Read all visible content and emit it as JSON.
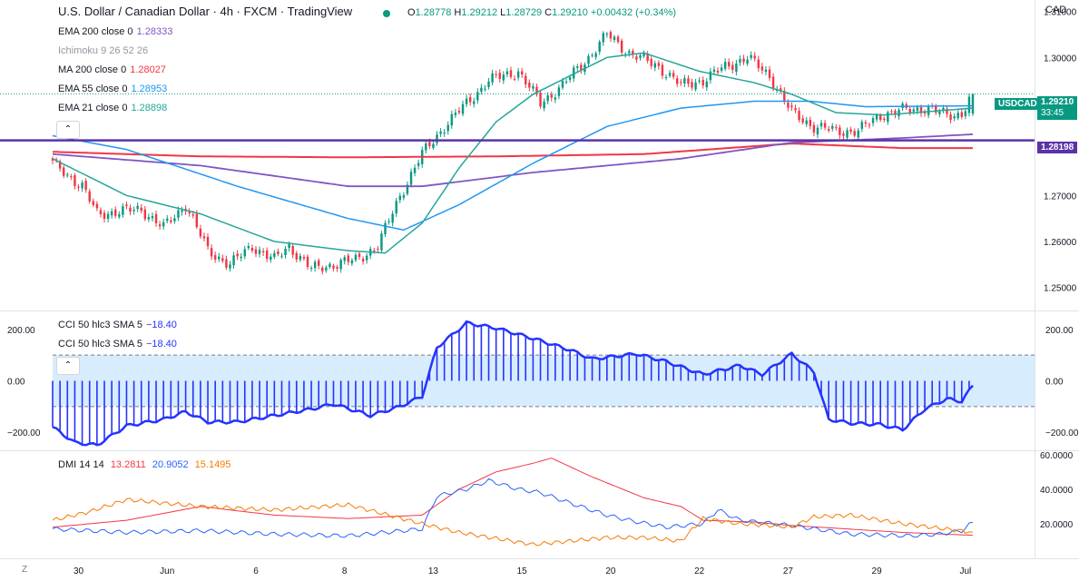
{
  "header": {
    "title": "U.S. Dollar / Canadian Dollar · 4h · FXCM · TradingView",
    "ohlc": {
      "o_label": "O",
      "o": "1.28778",
      "h_label": "H",
      "h": "1.29212",
      "l_label": "L",
      "l": "1.28729",
      "c_label": "C",
      "c": "1.29210",
      "change": "+0.00432 (+0.34%)"
    },
    "currency": "CAD"
  },
  "indicators": {
    "ema200": {
      "label": "EMA 200 close 0",
      "value": "1.28333",
      "color": "#7e57c2"
    },
    "ichimoku": {
      "label": "Ichimoku 9 26 52 26",
      "value": "",
      "color": "#b2b5be"
    },
    "ma200": {
      "label": "MA 200 close 0",
      "value": "1.28027",
      "color": "#f23645"
    },
    "ema55": {
      "label": "EMA 55 close 0",
      "value": "1.28953",
      "color": "#2196f3"
    },
    "ema21": {
      "label": "EMA 21 close 0",
      "value": "1.28898",
      "color": "#26a69a"
    }
  },
  "price_tags": {
    "symbol": "USDCAD",
    "last": "1.29210",
    "countdown": "33:45",
    "hline": "1.28198"
  },
  "colors": {
    "up": "#089981",
    "down": "#f23645",
    "hline": "#5b32a8",
    "cci": "#2433ff",
    "dmi_adx": "#f23645",
    "dmi_plus": "#2962ff",
    "dmi_minus": "#f57c00"
  },
  "cci_pane": {
    "labels": [
      "CCI 50 hlc3 SMA 5",
      "CCI 50 hlc3 SMA 5"
    ],
    "values": [
      "−18.40",
      "−18.40"
    ]
  },
  "dmi_pane": {
    "label": "DMI 14 14",
    "v1": "13.2811",
    "v2": "20.9052",
    "v3": "15.1495"
  },
  "chart_data": [
    {
      "type": "candlestick",
      "title": "U.S. Dollar / Canadian Dollar, 4h",
      "ylim": [
        1.245,
        1.3125
      ],
      "y_ticks": [
        "1.31000",
        "1.30000",
        "1.29000",
        "1.28000",
        "1.27000",
        "1.26000",
        "1.25000"
      ],
      "y_tick_values": [
        1.31,
        1.3,
        1.29,
        1.28,
        1.27,
        1.26,
        1.25
      ],
      "x_ticks": [
        "30",
        "Jun",
        "6",
        "8",
        "13",
        "15",
        "20",
        "22",
        "27",
        "29",
        "Jul"
      ],
      "x_tick_index": [
        7,
        31,
        55,
        79,
        103,
        127,
        151,
        175,
        199,
        223,
        247
      ],
      "n_bars": 250,
      "horizontal_line": 1.28198,
      "close_anchors": [
        [
          0,
          1.277
        ],
        [
          8,
          1.272
        ],
        [
          12,
          1.266
        ],
        [
          24,
          1.267
        ],
        [
          30,
          1.263
        ],
        [
          36,
          1.268
        ],
        [
          42,
          1.258
        ],
        [
          48,
          1.255
        ],
        [
          54,
          1.259
        ],
        [
          60,
          1.256
        ],
        [
          64,
          1.259
        ],
        [
          70,
          1.254
        ],
        [
          76,
          1.255
        ],
        [
          82,
          1.256
        ],
        [
          88,
          1.259
        ],
        [
          94,
          1.27
        ],
        [
          100,
          1.279
        ],
        [
          106,
          1.285
        ],
        [
          112,
          1.29
        ],
        [
          118,
          1.295
        ],
        [
          126,
          1.297
        ],
        [
          132,
          1.29
        ],
        [
          138,
          1.294
        ],
        [
          145,
          1.3
        ],
        [
          150,
          1.305
        ],
        [
          156,
          1.301
        ],
        [
          164,
          1.298
        ],
        [
          170,
          1.294
        ],
        [
          176,
          1.295
        ],
        [
          182,
          1.298
        ],
        [
          188,
          1.3
        ],
        [
          194,
          1.296
        ],
        [
          200,
          1.288
        ],
        [
          206,
          1.285
        ],
        [
          212,
          1.284
        ],
        [
          218,
          1.284
        ],
        [
          224,
          1.2875
        ],
        [
          230,
          1.2885
        ],
        [
          236,
          1.289
        ],
        [
          242,
          1.2875
        ],
        [
          246,
          1.2878
        ],
        [
          249,
          1.2921
        ]
      ],
      "ema200_anchors": [
        [
          0,
          1.279
        ],
        [
          40,
          1.2765
        ],
        [
          80,
          1.272
        ],
        [
          100,
          1.272
        ],
        [
          130,
          1.275
        ],
        [
          170,
          1.278
        ],
        [
          200,
          1.2815
        ],
        [
          230,
          1.2825
        ],
        [
          249,
          1.2833
        ]
      ],
      "ma200_anchors": [
        [
          0,
          1.2795
        ],
        [
          40,
          1.2785
        ],
        [
          80,
          1.2783
        ],
        [
          120,
          1.2785
        ],
        [
          160,
          1.279
        ],
        [
          200,
          1.2813
        ],
        [
          230,
          1.2803
        ],
        [
          249,
          1.2803
        ]
      ],
      "ema55_anchors": [
        [
          0,
          1.283
        ],
        [
          20,
          1.28
        ],
        [
          50,
          1.272
        ],
        [
          80,
          1.265
        ],
        [
          95,
          1.2625
        ],
        [
          110,
          1.268
        ],
        [
          130,
          1.277
        ],
        [
          150,
          1.285
        ],
        [
          170,
          1.289
        ],
        [
          190,
          1.2905
        ],
        [
          205,
          1.2905
        ],
        [
          220,
          1.2893
        ],
        [
          249,
          1.2895
        ]
      ],
      "ema21_anchors": [
        [
          0,
          1.278
        ],
        [
          20,
          1.27
        ],
        [
          40,
          1.266
        ],
        [
          60,
          1.26
        ],
        [
          80,
          1.258
        ],
        [
          90,
          1.2575
        ],
        [
          100,
          1.264
        ],
        [
          110,
          1.276
        ],
        [
          120,
          1.286
        ],
        [
          130,
          1.292
        ],
        [
          140,
          1.296
        ],
        [
          150,
          1.3
        ],
        [
          160,
          1.301
        ],
        [
          175,
          1.297
        ],
        [
          190,
          1.2945
        ],
        [
          200,
          1.292
        ],
        [
          212,
          1.288
        ],
        [
          225,
          1.2875
        ],
        [
          249,
          1.289
        ]
      ]
    },
    {
      "type": "area",
      "title": "CCI 50 hlc3 SMA 5",
      "ylim": [
        -270,
        270
      ],
      "y_ticks": [
        "200.00",
        "0.00",
        "−200.00"
      ],
      "y_tick_values": [
        200,
        0,
        -200
      ],
      "band": [
        -100,
        100
      ],
      "last": -18.4,
      "anchors": [
        [
          0,
          -180
        ],
        [
          6,
          -240
        ],
        [
          12,
          -250
        ],
        [
          20,
          -175
        ],
        [
          30,
          -150
        ],
        [
          36,
          -120
        ],
        [
          42,
          -160
        ],
        [
          50,
          -160
        ],
        [
          60,
          -135
        ],
        [
          70,
          -110
        ],
        [
          76,
          -90
        ],
        [
          86,
          -135
        ],
        [
          94,
          -100
        ],
        [
          100,
          -60
        ],
        [
          104,
          130
        ],
        [
          112,
          225
        ],
        [
          120,
          205
        ],
        [
          130,
          165
        ],
        [
          140,
          120
        ],
        [
          146,
          85
        ],
        [
          158,
          105
        ],
        [
          166,
          75
        ],
        [
          176,
          25
        ],
        [
          186,
          60
        ],
        [
          192,
          25
        ],
        [
          200,
          105
        ],
        [
          206,
          35
        ],
        [
          210,
          -150
        ],
        [
          216,
          -165
        ],
        [
          224,
          -170
        ],
        [
          230,
          -190
        ],
        [
          236,
          -110
        ],
        [
          242,
          -70
        ],
        [
          246,
          -80
        ],
        [
          249,
          -18.4
        ]
      ]
    },
    {
      "type": "line",
      "title": "DMI 14 14",
      "ylim": [
        0,
        62
      ],
      "y_ticks": [
        "60.0000",
        "40.0000",
        "20.0000"
      ],
      "y_tick_values": [
        60,
        40,
        20
      ],
      "series": [
        {
          "name": "ADX",
          "last": 13.2811,
          "anchors": [
            [
              0,
              18
            ],
            [
              20,
              22
            ],
            [
              40,
              30
            ],
            [
              60,
              25
            ],
            [
              80,
              23
            ],
            [
              100,
              25
            ],
            [
              110,
              40
            ],
            [
              120,
              50
            ],
            [
              130,
              55
            ],
            [
              135,
              58
            ],
            [
              145,
              48
            ],
            [
              160,
              35
            ],
            [
              170,
              30
            ],
            [
              176,
              22
            ],
            [
              190,
              21
            ],
            [
              200,
              19
            ],
            [
              215,
              17
            ],
            [
              230,
              15
            ],
            [
              249,
              13.3
            ]
          ]
        },
        {
          "name": "+DI",
          "last": 20.9052,
          "anchors": [
            [
              0,
              17
            ],
            [
              20,
              15
            ],
            [
              40,
              16
            ],
            [
              60,
              14
            ],
            [
              80,
              13
            ],
            [
              100,
              17
            ],
            [
              104,
              36
            ],
            [
              112,
              40
            ],
            [
              118,
              45
            ],
            [
              126,
              40
            ],
            [
              132,
              38
            ],
            [
              140,
              32
            ],
            [
              150,
              25
            ],
            [
              156,
              22
            ],
            [
              166,
              18
            ],
            [
              176,
              20
            ],
            [
              180,
              28
            ],
            [
              186,
              22
            ],
            [
              200,
              19
            ],
            [
              216,
              14
            ],
            [
              232,
              13
            ],
            [
              240,
              14
            ],
            [
              246,
              16
            ],
            [
              249,
              20.9
            ]
          ]
        },
        {
          "name": "-DI",
          "last": 15.1495,
          "anchors": [
            [
              0,
              22
            ],
            [
              10,
              27
            ],
            [
              20,
              34
            ],
            [
              40,
              30
            ],
            [
              60,
              28
            ],
            [
              80,
              31
            ],
            [
              100,
              20
            ],
            [
              110,
              15
            ],
            [
              130,
              8
            ],
            [
              140,
              10
            ],
            [
              150,
              12
            ],
            [
              160,
              12
            ],
            [
              170,
              10
            ],
            [
              176,
              23
            ],
            [
              186,
              20
            ],
            [
              194,
              19
            ],
            [
              200,
              18
            ],
            [
              206,
              24
            ],
            [
              216,
              25
            ],
            [
              230,
              20
            ],
            [
              249,
              15.1
            ]
          ]
        }
      ]
    }
  ]
}
